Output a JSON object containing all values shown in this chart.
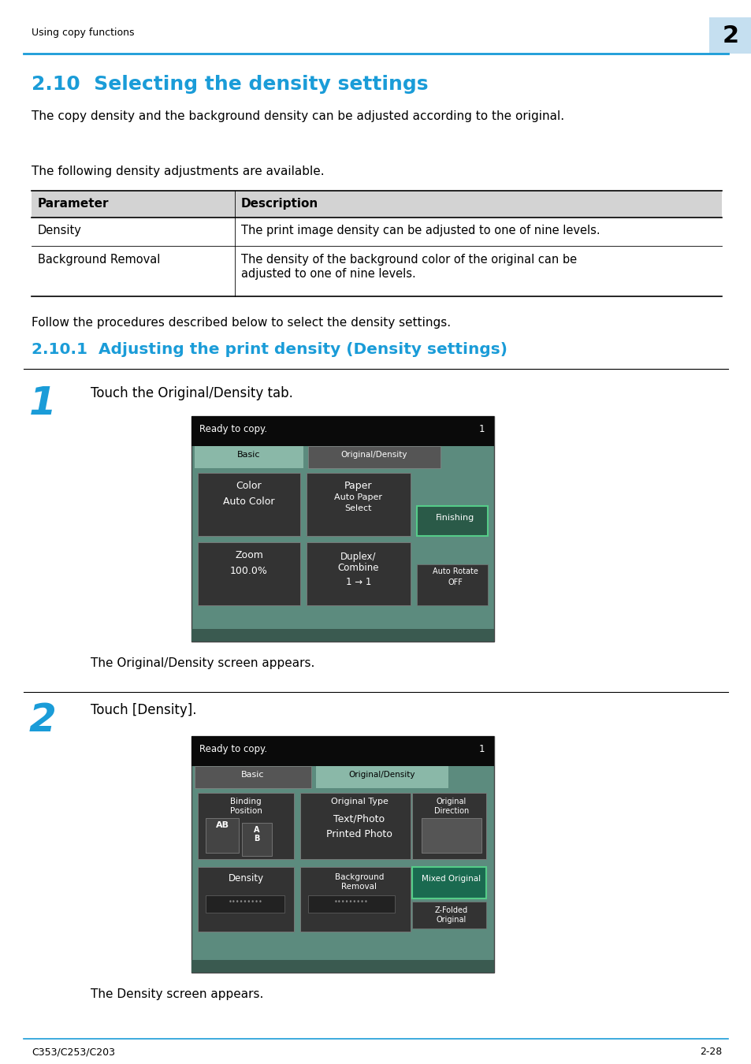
{
  "page_width": 9.54,
  "page_height": 13.5,
  "bg": "#ffffff",
  "header_text": "Using copy functions",
  "chapter_num": "2",
  "chapter_bg": "#c5dff0",
  "header_line_color": "#1a9cd8",
  "sec_title": "2.10  Selecting the density settings",
  "sec_color": "#1a9cd8",
  "body1": "The copy density and the background density can be adjusted according to the original.",
  "body2": "The following density adjustments are available.",
  "tbl_hdr_bg": "#d3d3d3",
  "tbl_col1": "Parameter",
  "tbl_col2": "Description",
  "tbl_r1c1": "Density",
  "tbl_r1c2": "The print image density can be adjusted to one of nine levels.",
  "tbl_r2c1": "Background Removal",
  "tbl_r2c2_l1": "The density of the background color of the original can be",
  "tbl_r2c2_l2": "adjusted to one of nine levels.",
  "body3": "Follow the procedures described below to select the density settings.",
  "sub_title": "2.10.1  Adjusting the print density (Density settings)",
  "sub_color": "#1a9cd8",
  "step1_num": "1",
  "step1_text": "Touch the Original/Density tab.",
  "step1_note": "The Original/Density screen appears.",
  "step2_num": "2",
  "step2_text": "Touch [Density].",
  "step2_note": "The Density screen appears.",
  "footer_l": "C353/C253/C203",
  "footer_r": "2-28",
  "step_color": "#1a9cd8",
  "scr_teal": "#5c8b7e",
  "scr_black": "#0a0a0a",
  "scr_btn": "#333333",
  "scr_tab_green": "#8ab8a8",
  "scr_tab_dark": "#555555",
  "scr_fin_green": "#2a5a48",
  "scr_mix_green": "#1a6a50"
}
